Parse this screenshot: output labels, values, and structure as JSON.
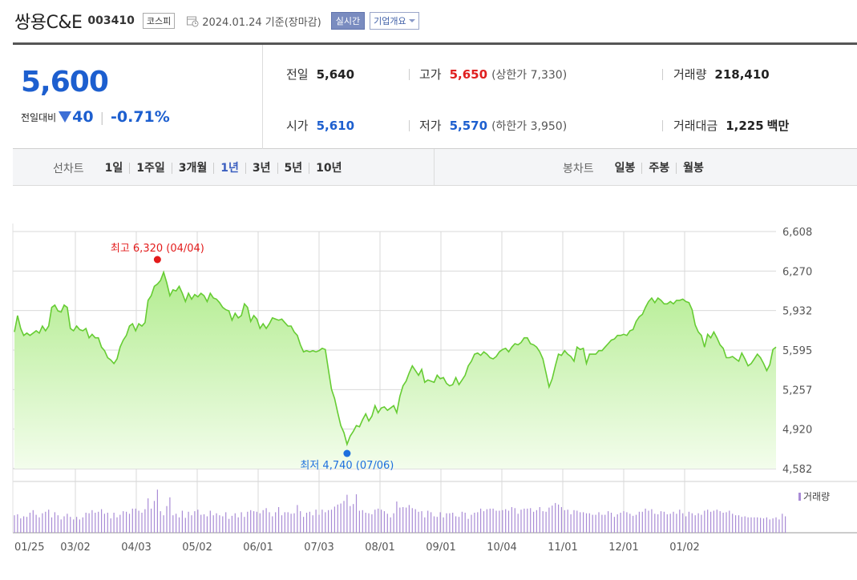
{
  "header": {
    "company_name": "쌍용C&E",
    "company_code": "003410",
    "market": "코스피",
    "date_text": "2024.01.24 기준(장마감)",
    "realtime_label": "실시간",
    "overview_label": "기업개요"
  },
  "summary": {
    "current_price": "5,600",
    "change_label": "전일대비",
    "change_value": "40",
    "change_rate": "-0.71%",
    "prev_close_label": "전일",
    "prev_close": "5,640",
    "open_label": "시가",
    "open": "5,610",
    "high_label": "고가",
    "high": "5,650",
    "upper_limit": "(상한가 7,330)",
    "low_label": "저가",
    "low": "5,570",
    "lower_limit": "(하한가 3,950)",
    "volume_label": "거래량",
    "volume": "218,410",
    "amount_label": "거래대금",
    "amount": "1,225",
    "amount_unit": "백만"
  },
  "periods": {
    "line_label": "선차트",
    "line_items": [
      "1일",
      "1주일",
      "3개월",
      "1년",
      "3년",
      "5년",
      "10년"
    ],
    "active_item": "1년",
    "candle_label": "봉차트",
    "candle_items": [
      "일봉",
      "주봉",
      "월봉"
    ]
  },
  "colors": {
    "line": "#66cc33",
    "area_top": "#b2ec8f",
    "area_bottom": "#f3fdec",
    "high": "#e31b1b",
    "low": "#1d6fde",
    "volume": "#a98bd6",
    "grid": "#d9d9d9"
  },
  "chart_data": {
    "type": "area",
    "ylim": [
      4582,
      6608
    ],
    "y_ticks": [
      "6,608",
      "6,270",
      "5,932",
      "5,595",
      "5,257",
      "4,920",
      "4,582"
    ],
    "x_tick_labels": [
      "01/25",
      "03/02",
      "04/03",
      "05/02",
      "06/01",
      "07/03",
      "08/01",
      "09/01",
      "10/04",
      "11/01",
      "12/01",
      "01/02"
    ],
    "high_annotation": "최고 6,320 (04/04)",
    "low_annotation": "최저 4,740 (07/06)",
    "high_index": 46,
    "low_index": 107,
    "volume_label": "거래량",
    "price_series": [
      5750,
      5890,
      5780,
      5720,
      5740,
      5720,
      5740,
      5760,
      5740,
      5800,
      5760,
      5800,
      5960,
      5980,
      5930,
      5920,
      5980,
      5960,
      5780,
      5760,
      5800,
      5770,
      5760,
      5780,
      5700,
      5730,
      5700,
      5700,
      5620,
      5590,
      5530,
      5510,
      5480,
      5520,
      5620,
      5680,
      5720,
      5800,
      5820,
      5760,
      5820,
      5800,
      5830,
      6020,
      6060,
      6140,
      6160,
      6190,
      6260,
      6170,
      6060,
      6110,
      6100,
      6140,
      6080,
      6010,
      6080,
      6030,
      6070,
      6050,
      6080,
      6060,
      6010,
      6080,
      6040,
      6030,
      6000,
      5960,
      5940,
      5930,
      5850,
      5910,
      5870,
      5890,
      5990,
      5960,
      5840,
      5890,
      5860,
      5780,
      5820,
      5780,
      5820,
      5870,
      5860,
      5850,
      5860,
      5830,
      5800,
      5800,
      5750,
      5720,
      5640,
      5580,
      5590,
      5580,
      5590,
      5580,
      5590,
      5610,
      5600,
      5430,
      5260,
      5180,
      5060,
      4950,
      4890,
      4790,
      4860,
      4900,
      4950,
      4940,
      5000,
      5050,
      4990,
      5030,
      5120,
      5060,
      5100,
      5110,
      5080,
      5100,
      5120,
      5060,
      5200,
      5290,
      5330,
      5400,
      5460,
      5420,
      5380,
      5430,
      5320,
      5340,
      5330,
      5320,
      5380,
      5350,
      5360,
      5310,
      5290,
      5300,
      5360,
      5300,
      5340,
      5380,
      5460,
      5500,
      5560,
      5570,
      5550,
      5580,
      5560,
      5530,
      5520,
      5540,
      5580,
      5600,
      5610,
      5580,
      5620,
      5650,
      5640,
      5660,
      5700,
      5700,
      5650,
      5640,
      5620,
      5580,
      5520,
      5400,
      5280,
      5350,
      5460,
      5560,
      5550,
      5590,
      5560,
      5540,
      5500,
      5620,
      5600,
      5610,
      5480,
      5560,
      5560,
      5560,
      5590,
      5590,
      5620,
      5650,
      5680,
      5690,
      5720,
      5720,
      5730,
      5720,
      5760,
      5770,
      5840,
      5880,
      5900,
      5960,
      6010,
      6040,
      6000,
      6040,
      6020,
      5990,
      5990,
      6010,
      5990,
      6020,
      6020,
      6030,
      6010,
      6000,
      5940,
      5810,
      5750,
      5720,
      5620,
      5730,
      5700,
      5750,
      5700,
      5640,
      5610,
      5530,
      5530,
      5540,
      5520,
      5500,
      5570,
      5520,
      5460,
      5480,
      5520,
      5560,
      5530,
      5480,
      5420,
      5470,
      5600,
      5620
    ],
    "volume_series": [
      0.34,
      0.36,
      0.28,
      0.32,
      0.31,
      0.39,
      0.44,
      0.35,
      0.3,
      0.38,
      0.41,
      0.45,
      0.3,
      0.4,
      0.34,
      0.26,
      0.32,
      0.37,
      0.31,
      0.26,
      0.31,
      0.26,
      0.3,
      0.39,
      0.38,
      0.44,
      0.39,
      0.41,
      0.46,
      0.37,
      0.39,
      0.28,
      0.39,
      0.3,
      0.35,
      0.42,
      0.41,
      0.37,
      0.47,
      0.47,
      0.43,
      0.39,
      0.46,
      0.67,
      0.47,
      0.62,
      0.84,
      0.42,
      0.34,
      0.52,
      0.69,
      0.34,
      0.37,
      0.3,
      0.43,
      0.29,
      0.41,
      0.34,
      0.42,
      0.45,
      0.35,
      0.36,
      0.32,
      0.43,
      0.34,
      0.38,
      0.34,
      0.32,
      0.4,
      0.27,
      0.33,
      0.38,
      0.3,
      0.4,
      0.31,
      0.41,
      0.44,
      0.42,
      0.41,
      0.38,
      0.44,
      0.48,
      0.4,
      0.32,
      0.4,
      0.5,
      0.34,
      0.4,
      0.4,
      0.37,
      0.38,
      0.54,
      0.42,
      0.31,
      0.39,
      0.41,
      0.34,
      0.45,
      0.35,
      0.45,
      0.4,
      0.44,
      0.45,
      0.51,
      0.55,
      0.57,
      0.62,
      0.74,
      0.52,
      0.56,
      0.75,
      0.43,
      0.44,
      0.39,
      0.38,
      0.36,
      0.45,
      0.47,
      0.45,
      0.42,
      0.37,
      0.3,
      0.38,
      0.61,
      0.49,
      0.5,
      0.49,
      0.54,
      0.48,
      0.46,
      0.41,
      0.42,
      0.3,
      0.43,
      0.4,
      0.32,
      0.31,
      0.4,
      0.3,
      0.38,
      0.38,
      0.39,
      0.32,
      0.31,
      0.41,
      0.39,
      0.27,
      0.35,
      0.39,
      0.4,
      0.47,
      0.42,
      0.46,
      0.47,
      0.47,
      0.43,
      0.43,
      0.44,
      0.46,
      0.43,
      0.5,
      0.48,
      0.37,
      0.45,
      0.47,
      0.47,
      0.48,
      0.41,
      0.44,
      0.5,
      0.42,
      0.41,
      0.49,
      0.53,
      0.58,
      0.55,
      0.5,
      0.44,
      0.45,
      0.36,
      0.44,
      0.43,
      0.4,
      0.4,
      0.38,
      0.38,
      0.35,
      0.35,
      0.4,
      0.35,
      0.35,
      0.42,
      0.39,
      0.31,
      0.36,
      0.39,
      0.42,
      0.4,
      0.37,
      0.33,
      0.35,
      0.41,
      0.41,
      0.47,
      0.43,
      0.46,
      0.37,
      0.36,
      0.42,
      0.41,
      0.36,
      0.37,
      0.41,
      0.37,
      0.45,
      0.38,
      0.32,
      0.41,
      0.38,
      0.34,
      0.38,
      0.35,
      0.43,
      0.45,
      0.41,
      0.43,
      0.45,
      0.42,
      0.39,
      0.4,
      0.43,
      0.37,
      0.34,
      0.34,
      0.31,
      0.32,
      0.3,
      0.3,
      0.3,
      0.3,
      0.29,
      0.28,
      0.3,
      0.26,
      0.28,
      0.3,
      0.26,
      0.37,
      0.32
    ]
  }
}
